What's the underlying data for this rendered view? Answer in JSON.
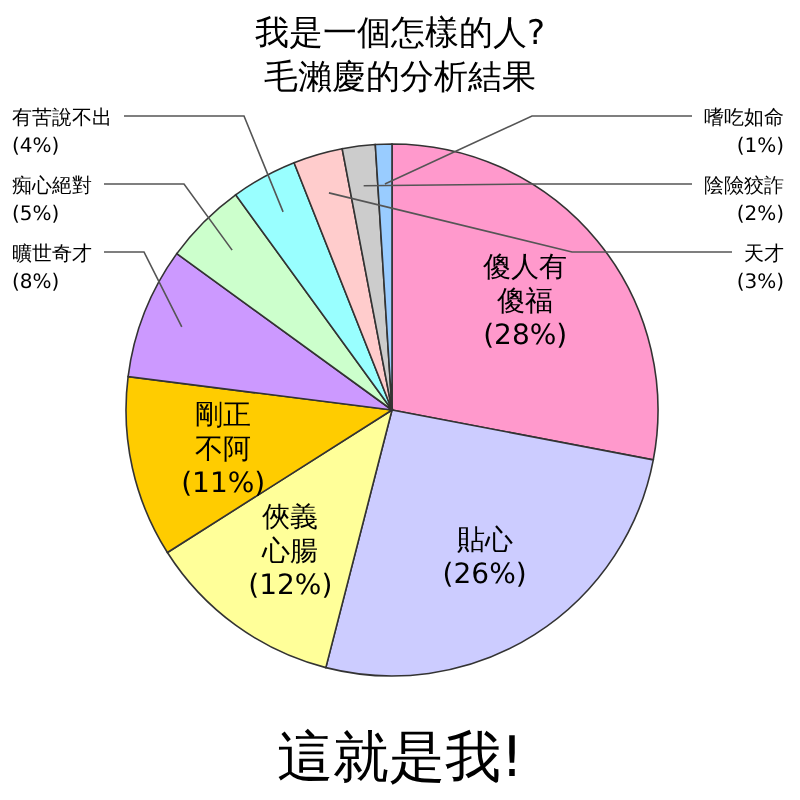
{
  "chart_data": {
    "type": "pie",
    "title": "我是一個怎樣的人?",
    "subtitle": "毛瀨慶的分析結果",
    "categories": [
      "傻人有傻福",
      "貼心",
      "俠義心腸",
      "剛正不阿",
      "曠世奇才",
      "痴心絕對",
      "有苦說不出",
      "天才",
      "陰險狡詐",
      "嗜吃如命"
    ],
    "values": [
      28,
      26,
      12,
      11,
      8,
      5,
      4,
      3,
      2,
      1
    ],
    "value_labels": [
      "(28%)",
      "(26%)",
      "(12%)",
      "(11%)",
      "(8%)",
      "(5%)",
      "(4%)",
      "(3%)",
      "(2%)",
      "(1%)"
    ],
    "colors": [
      "#ff99cc",
      "#ccccff",
      "#ffff99",
      "#ffcc00",
      "#cc99ff",
      "#ccffcc",
      "#99ffff",
      "#ffcccc",
      "#cccccc",
      "#99ccff"
    ],
    "annotations": [
      "這就是我!"
    ]
  }
}
